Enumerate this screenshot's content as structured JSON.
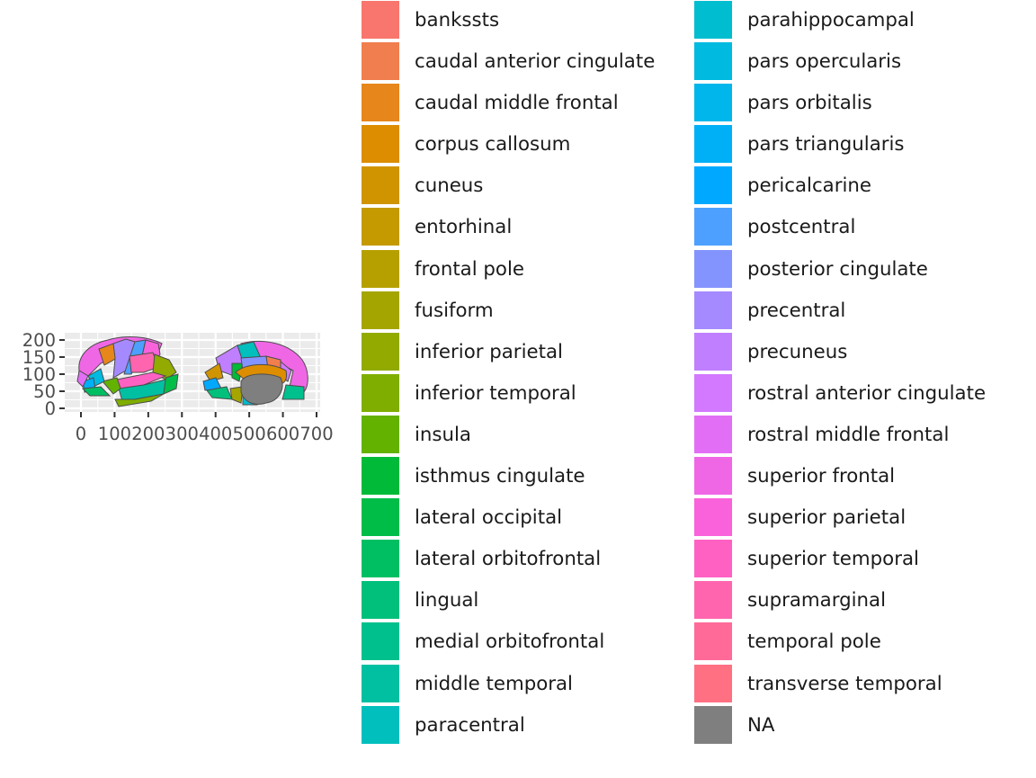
{
  "chart_data": {
    "type": "map",
    "title": "",
    "xlabel": "",
    "ylabel": "",
    "xlim": [
      0,
      700
    ],
    "ylim": [
      0,
      200
    ],
    "x_ticks": [
      "0",
      "100",
      "200",
      "300",
      "400",
      "500",
      "600",
      "700"
    ],
    "y_ticks": [
      "0",
      "50",
      "100",
      "150",
      "200"
    ],
    "grid": true,
    "panel_background": "#ebebeb",
    "legend_position": "right",
    "views": [
      "lateral",
      "medial"
    ],
    "outline_color": "#4d4d4d",
    "legend": [
      {
        "label": "bankssts",
        "color": "#F8766D"
      },
      {
        "label": "caudal anterior cingulate",
        "color": "#F17E4F"
      },
      {
        "label": "caudal middle frontal",
        "color": "#E7861B"
      },
      {
        "label": "corpus callosum",
        "color": "#DC8D00"
      },
      {
        "label": "cuneus",
        "color": "#D09400"
      },
      {
        "label": "entorhinal",
        "color": "#C49A00"
      },
      {
        "label": "frontal pole",
        "color": "#B6A000"
      },
      {
        "label": "fusiform",
        "color": "#A5A500"
      },
      {
        "label": "inferior parietal",
        "color": "#93AA00"
      },
      {
        "label": "inferior temporal",
        "color": "#7FAE00"
      },
      {
        "label": "insula",
        "color": "#64B200"
      },
      {
        "label": "isthmus cingulate",
        "color": "#00BA38"
      },
      {
        "label": "lateral occipital",
        "color": "#00BD48"
      },
      {
        "label": "lateral orbitofrontal",
        "color": "#00BF63"
      },
      {
        "label": "lingual",
        "color": "#00C07B"
      },
      {
        "label": "medial orbitofrontal",
        "color": "#00C08E"
      },
      {
        "label": "middle temporal",
        "color": "#00C0A1"
      },
      {
        "label": "paracentral",
        "color": "#00BFBD"
      },
      {
        "label": "parahippocampal",
        "color": "#00BDD0"
      },
      {
        "label": "pars opercularis",
        "color": "#00BAE0"
      },
      {
        "label": "pars orbitalis",
        "color": "#00B6EB"
      },
      {
        "label": "pars triangularis",
        "color": "#00B0F6"
      },
      {
        "label": "pericalcarine",
        "color": "#00A9FF"
      },
      {
        "label": "postcentral",
        "color": "#4DA0FF"
      },
      {
        "label": "posterior cingulate",
        "color": "#8494FF"
      },
      {
        "label": "precentral",
        "color": "#A58AFF"
      },
      {
        "label": "precuneus",
        "color": "#BF7FFF"
      },
      {
        "label": "rostral anterior cingulate",
        "color": "#D279FF"
      },
      {
        "label": "rostral middle frontal",
        "color": "#E36EF6"
      },
      {
        "label": "superior frontal",
        "color": "#F067E6"
      },
      {
        "label": "superior parietal",
        "color": "#FA62DB"
      },
      {
        "label": "superior temporal",
        "color": "#FF61C3"
      },
      {
        "label": "supramarginal",
        "color": "#FF65AE"
      },
      {
        "label": "temporal pole",
        "color": "#FF6A98"
      },
      {
        "label": "transverse temporal",
        "color": "#FF7083"
      },
      {
        "label": "NA",
        "color": "#7F7F7F"
      }
    ]
  }
}
